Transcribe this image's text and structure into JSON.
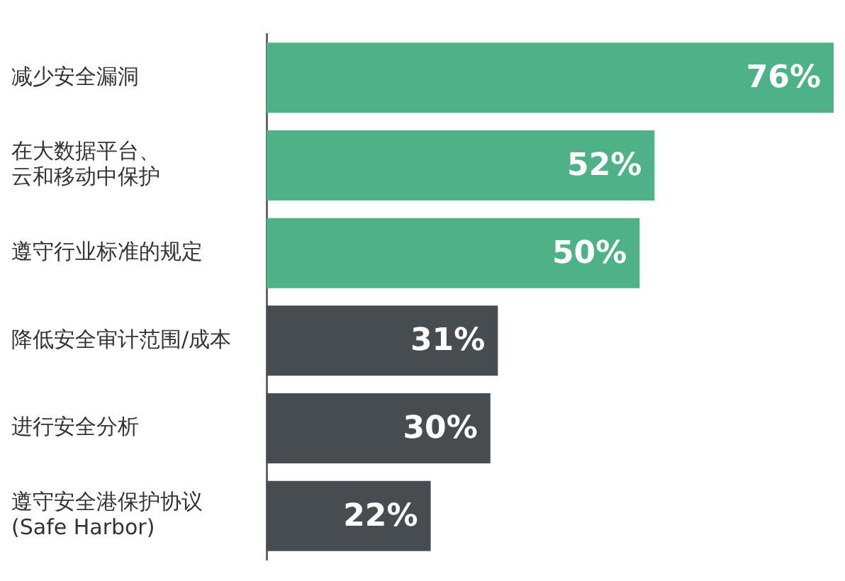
{
  "chart_data": {
    "type": "bar",
    "orientation": "horizontal",
    "tick_labels": "y",
    "categories": [
      "减少安全漏洞",
      "在大数据平台、云和移动中保护",
      "遵守行业标准的规定",
      "降低安全审计范围/成本",
      "进行安全分析",
      "遵守安全港保护协议 (Safe Harbor)"
    ],
    "values": [
      76,
      52,
      50,
      31,
      30,
      22
    ],
    "colors": [
      "#4fb286",
      "#4fb286",
      "#4fb286",
      "#464c50",
      "#464c50",
      "#464c50"
    ],
    "value_labels": [
      "76%",
      "52%",
      "50%",
      "31%",
      "30%",
      "22%"
    ]
  }
}
